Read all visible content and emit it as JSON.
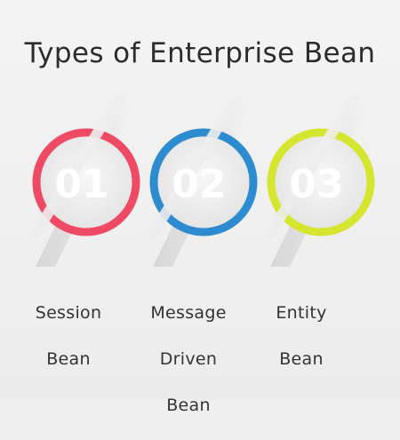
{
  "title": "Types of Enterprise Bean",
  "items": [
    {
      "number": "01",
      "label_lines": [
        "Session",
        "Bean"
      ],
      "color": "#ee4a63"
    },
    {
      "number": "02",
      "label_lines": [
        "Message",
        "Driven",
        "Bean"
      ],
      "color": "#2d8ccf"
    },
    {
      "number": "03",
      "label_lines": [
        "Entity",
        "Bean"
      ],
      "color": "#d6e52f"
    }
  ],
  "colors": {
    "background": "#efefef",
    "text": "#2c2c2c",
    "number_text": "#ffffff"
  }
}
